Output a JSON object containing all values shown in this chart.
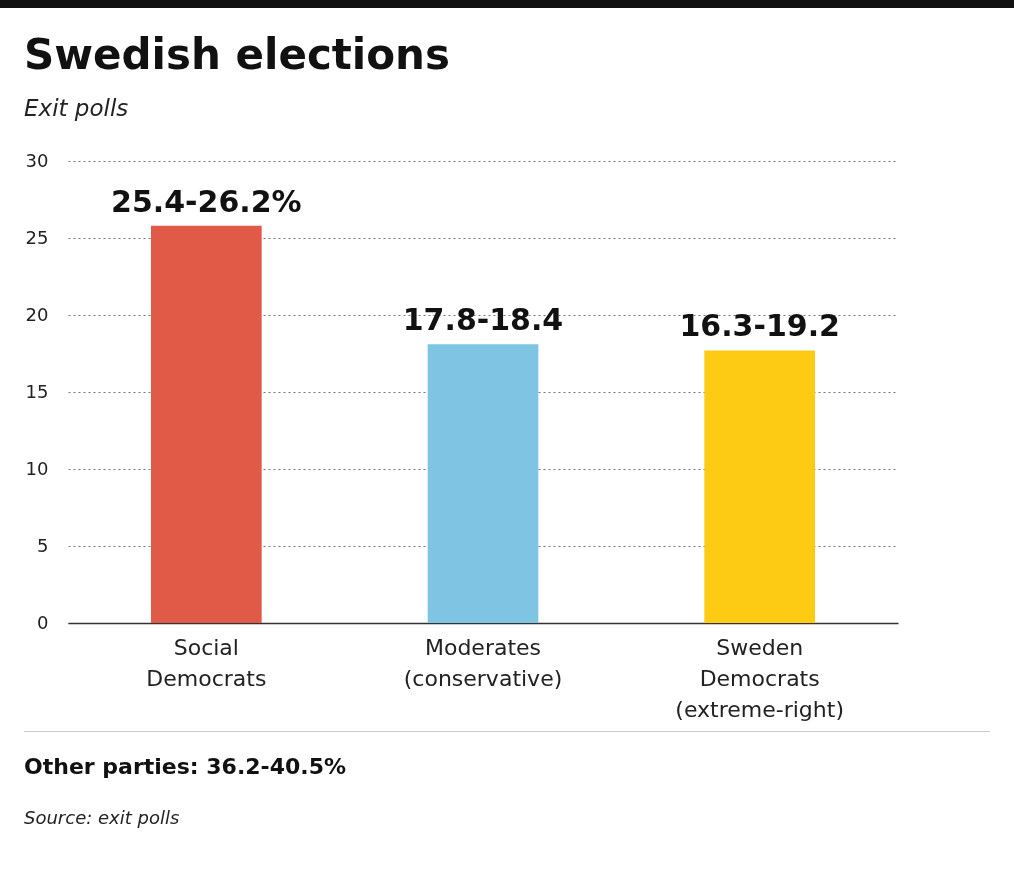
{
  "chart_data": {
    "type": "bar",
    "title": "Swedish elections",
    "subtitle": "Exit polls",
    "categories": [
      "Social Democrats",
      "Moderates (conservative)",
      "Sweden Democrats (extreme-right)"
    ],
    "values": [
      25.8,
      18.1,
      17.7
    ],
    "colors": [
      "#e05a47",
      "#80c4e4",
      "#fdca14"
    ],
    "ylim": [
      0,
      30
    ],
    "yticks": [
      0,
      5,
      10,
      15,
      20,
      25,
      30
    ],
    "grid": "y",
    "annotations": [
      {
        "text": "25.4-26.2%",
        "x": "Social Democrats",
        "y": 25.8
      },
      {
        "text": "17.8-18.4",
        "x": "Moderates (conservative)",
        "y": 18.1
      },
      {
        "text": "16.3-19.2",
        "x": "Sweden Democrats (extreme-right)",
        "y": 17.7
      },
      "Other parties: 36.2-40.5%",
      "Source: exit polls"
    ]
  }
}
